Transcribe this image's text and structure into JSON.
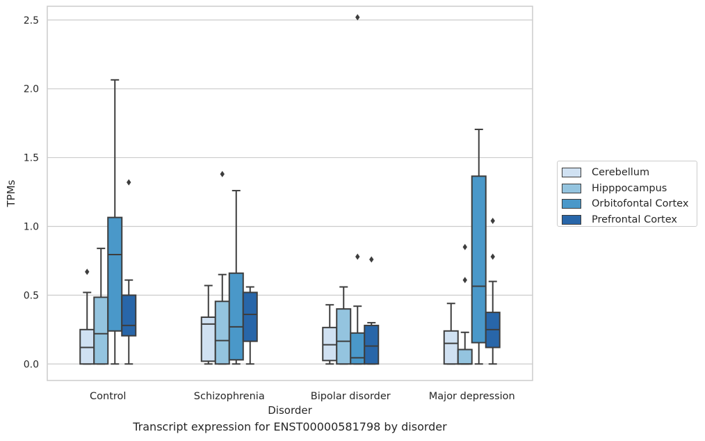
{
  "chart_data": {
    "type": "box",
    "ylabel": "TPMs",
    "xlabel": "Disorder",
    "ylim": [
      -0.12,
      2.6
    ],
    "yticks": [
      "0.0",
      "0.5",
      "1.0",
      "1.5",
      "2.0",
      "2.5"
    ],
    "grid": true,
    "legend_position": "right",
    "categories": [
      "Control",
      "Schizophrenia",
      "Bipolar disorder",
      "Major depression"
    ],
    "series": [
      {
        "name": "Cerebellum",
        "color": "#d0e1f2",
        "boxes": [
          {
            "min": 0.0,
            "q1": 0.0,
            "median": 0.12,
            "q3": 0.25,
            "max": 0.52,
            "outliers": [
              0.67
            ]
          },
          {
            "min": 0.0,
            "q1": 0.02,
            "median": 0.29,
            "q3": 0.34,
            "max": 0.57,
            "outliers": []
          },
          {
            "min": 0.0,
            "q1": 0.025,
            "median": 0.14,
            "q3": 0.265,
            "max": 0.43,
            "outliers": []
          },
          {
            "min": 0.0,
            "q1": 0.0,
            "median": 0.15,
            "q3": 0.24,
            "max": 0.44,
            "outliers": []
          }
        ]
      },
      {
        "name": "Hipppocampus",
        "color": "#94c4df",
        "boxes": [
          {
            "min": 0.0,
            "q1": 0.0,
            "median": 0.22,
            "q3": 0.485,
            "max": 0.84,
            "outliers": []
          },
          {
            "min": 0.0,
            "q1": 0.0,
            "median": 0.17,
            "q3": 0.455,
            "max": 0.65,
            "outliers": [
              1.38
            ]
          },
          {
            "min": 0.0,
            "q1": 0.0,
            "median": 0.165,
            "q3": 0.4,
            "max": 0.56,
            "outliers": []
          },
          {
            "min": 0.0,
            "q1": 0.0,
            "median": 0.0,
            "q3": 0.105,
            "max": 0.23,
            "outliers": [
              0.61,
              0.85
            ]
          }
        ]
      },
      {
        "name": "Orbitofontal Cortex",
        "color": "#4a98c9",
        "boxes": [
          {
            "min": 0.0,
            "q1": 0.24,
            "median": 0.795,
            "q3": 1.065,
            "max": 2.065,
            "outliers": []
          },
          {
            "min": 0.0,
            "q1": 0.03,
            "median": 0.27,
            "q3": 0.66,
            "max": 1.26,
            "outliers": []
          },
          {
            "min": 0.0,
            "q1": 0.0,
            "median": 0.045,
            "q3": 0.225,
            "max": 0.42,
            "outliers": [
              0.78,
              2.52
            ]
          },
          {
            "min": 0.0,
            "q1": 0.155,
            "median": 0.565,
            "q3": 1.365,
            "max": 1.705,
            "outliers": []
          }
        ]
      },
      {
        "name": "Prefrontal Cortex",
        "color": "#2866a9",
        "boxes": [
          {
            "min": 0.0,
            "q1": 0.205,
            "median": 0.28,
            "q3": 0.5,
            "max": 0.61,
            "outliers": [
              1.32
            ]
          },
          {
            "min": 0.0,
            "q1": 0.165,
            "median": 0.36,
            "q3": 0.52,
            "max": 0.56,
            "outliers": []
          },
          {
            "min": 0.0,
            "q1": 0.0,
            "median": 0.13,
            "q3": 0.28,
            "max": 0.3,
            "outliers": [
              0.76
            ]
          },
          {
            "min": 0.0,
            "q1": 0.12,
            "median": 0.25,
            "q3": 0.375,
            "max": 0.6,
            "outliers": [
              0.78,
              1.04
            ]
          }
        ]
      }
    ]
  },
  "caption": "Transcript expression for ENST00000581798 by disorder"
}
